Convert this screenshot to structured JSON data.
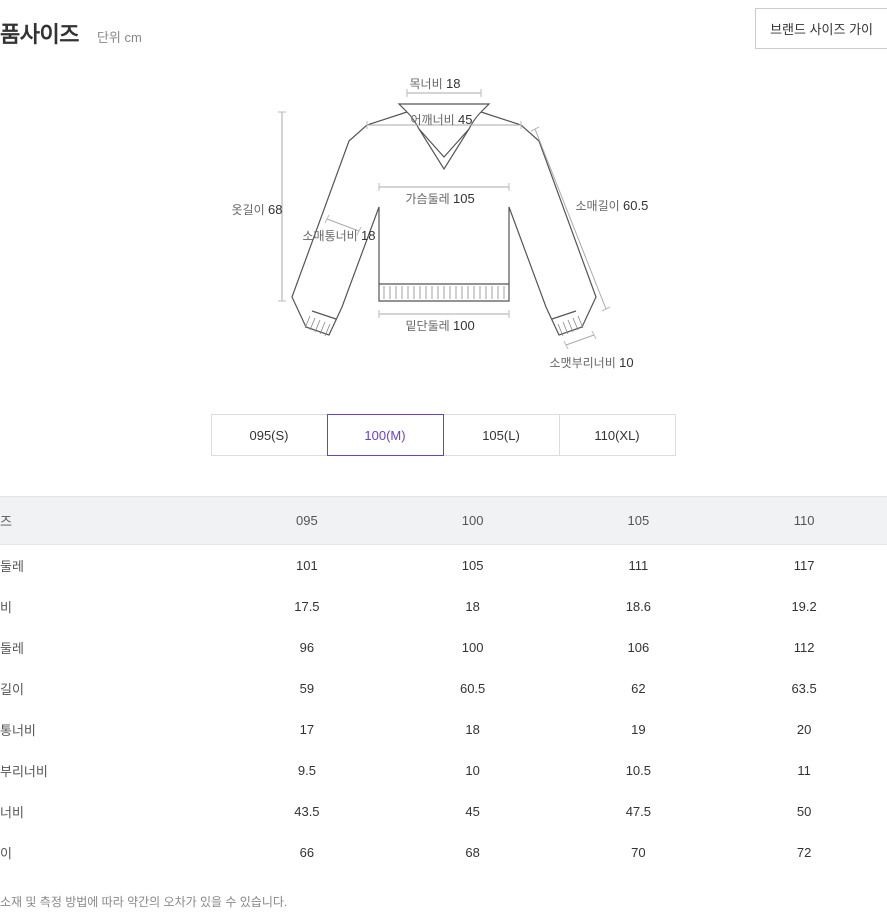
{
  "header": {
    "title": "품사이즈",
    "unit": "단위 cm",
    "guide_button": "브랜드 사이즈 가이"
  },
  "diagram": {
    "labels": {
      "neck_width": {
        "text": "목너비",
        "value": "18"
      },
      "shoulder": {
        "text": "어깨너비",
        "value": "45"
      },
      "chest": {
        "text": "가슴둘레",
        "value": "105"
      },
      "sleeve": {
        "text": "소매길이",
        "value": "60.5"
      },
      "body_length": {
        "text": "옷길이",
        "value": "68"
      },
      "sleeve_width": {
        "text": "소매통너비",
        "value": "18"
      },
      "hem": {
        "text": "밑단둘레",
        "value": "100"
      },
      "cuff": {
        "text": "소맷부리너비",
        "value": "10"
      }
    }
  },
  "size_tabs": [
    {
      "label": "095(S)",
      "active": false
    },
    {
      "label": "100(M)",
      "active": true
    },
    {
      "label": "105(L)",
      "active": false
    },
    {
      "label": "110(XL)",
      "active": false
    }
  ],
  "table": {
    "columns": [
      "즈",
      "095",
      "100",
      "105",
      "110"
    ],
    "rows": [
      [
        "둘레",
        "101",
        "105",
        "111",
        "117"
      ],
      [
        "비",
        "17.5",
        "18",
        "18.6",
        "19.2"
      ],
      [
        "둘레",
        "96",
        "100",
        "106",
        "112"
      ],
      [
        "길이",
        "59",
        "60.5",
        "62",
        "63.5"
      ],
      [
        "통너비",
        "17",
        "18",
        "19",
        "20"
      ],
      [
        "부리너비",
        "9.5",
        "10",
        "10.5",
        "11"
      ],
      [
        "너비",
        "43.5",
        "45",
        "47.5",
        "50"
      ],
      [
        "이",
        "66",
        "68",
        "70",
        "72"
      ]
    ]
  },
  "footnote": "소재 및 측정 방법에 따라 약간의 오차가 있을 수 있습니다."
}
